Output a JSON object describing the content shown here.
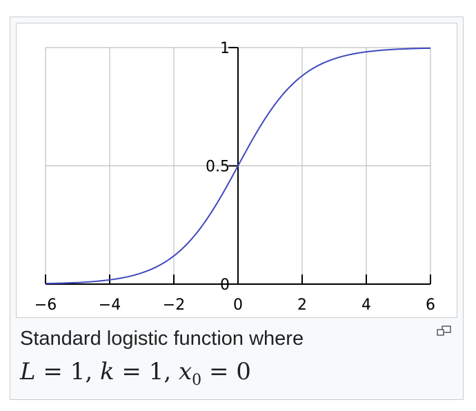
{
  "chart_data": {
    "type": "line",
    "title": "",
    "xlabel": "",
    "ylabel": "",
    "xlim": [
      -6,
      6
    ],
    "ylim": [
      0,
      1
    ],
    "x_ticks": [
      -6,
      -4,
      -2,
      0,
      2,
      4,
      6
    ],
    "x_tick_labels": [
      "−6",
      "−4",
      "−2",
      "0",
      "2",
      "4",
      "6"
    ],
    "y_ticks": [
      0,
      0.5,
      1
    ],
    "y_tick_labels": [
      "0",
      "0.5",
      "1"
    ],
    "grid": true,
    "series": [
      {
        "color": "#3f48c0",
        "x": [
          -6,
          -5,
          -4,
          -3,
          -2,
          -1.5,
          -1,
          -0.5,
          0,
          0.5,
          1,
          1.5,
          2,
          3,
          4,
          5,
          6
        ],
        "y": [
          0.0025,
          0.0067,
          0.018,
          0.047,
          0.119,
          0.182,
          0.269,
          0.378,
          0.5,
          0.622,
          0.731,
          0.818,
          0.881,
          0.953,
          0.982,
          0.993,
          0.9975
        ]
      }
    ]
  },
  "caption": {
    "text": "Standard logistic function where",
    "formula": {
      "L": "L",
      "eq": "=",
      "one": "1",
      "sep": ",",
      "k": "k",
      "x": "x",
      "sub": "0",
      "zero": "0"
    }
  },
  "icons": {
    "magnify": "magnify-icon"
  },
  "colors": {
    "curve": "#3f48c0",
    "grid": "#b3b3b3",
    "axis": "#000000"
  }
}
